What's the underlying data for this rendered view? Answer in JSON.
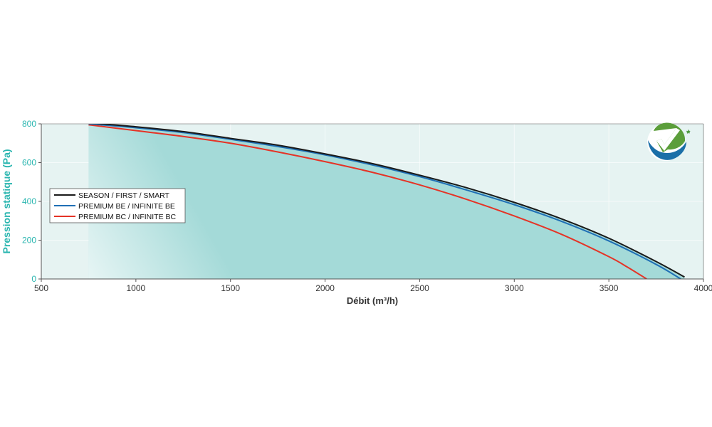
{
  "chart_data": {
    "type": "line",
    "title": "",
    "xlabel": "Débit (m³/h)",
    "ylabel": "Pression statique (Pa)",
    "xlim": [
      500,
      4000
    ],
    "ylim": [
      0,
      800
    ],
    "x_ticks": [
      500,
      1000,
      1500,
      2000,
      2500,
      3000,
      3500,
      4000
    ],
    "y_ticks": [
      0,
      200,
      400,
      600,
      800
    ],
    "grid": true,
    "legend_position": "left",
    "series": [
      {
        "name": "SEASON / FIRST / SMART",
        "color": "#1a1a1a",
        "x": [
          750,
          1000,
          1250,
          1500,
          1750,
          2000,
          2250,
          2500,
          2750,
          3000,
          3250,
          3500,
          3750,
          3900
        ],
        "y": [
          805,
          785,
          760,
          725,
          690,
          645,
          595,
          535,
          470,
          395,
          310,
          210,
          90,
          10
        ]
      },
      {
        "name": "PREMIUM BE / INFINITE BE",
        "color": "#1f6fb5",
        "x": [
          750,
          1000,
          1250,
          1500,
          1750,
          2000,
          2250,
          2500,
          2750,
          3000,
          3250,
          3500,
          3750,
          3880
        ],
        "y": [
          800,
          780,
          755,
          720,
          683,
          640,
          588,
          528,
          458,
          383,
          297,
          196,
          75,
          0
        ]
      },
      {
        "name": "PREMIUM BC / INFINITE BC",
        "color": "#e53326",
        "x": [
          750,
          1000,
          1250,
          1500,
          1750,
          2000,
          2250,
          2500,
          2750,
          3000,
          3250,
          3500,
          3600,
          3700
        ],
        "y": [
          795,
          765,
          735,
          700,
          655,
          605,
          550,
          485,
          410,
          325,
          230,
          115,
          60,
          0
        ]
      }
    ]
  },
  "colors": {
    "fill": "#a4dad8",
    "plot_background": "#e6f3f2",
    "axis_title": "#2bb6b0",
    "logo_green": "#5b9e3a",
    "logo_blue": "#1b6fa8"
  },
  "logo": {
    "icon": "check-badge-icon",
    "mark": "*"
  }
}
